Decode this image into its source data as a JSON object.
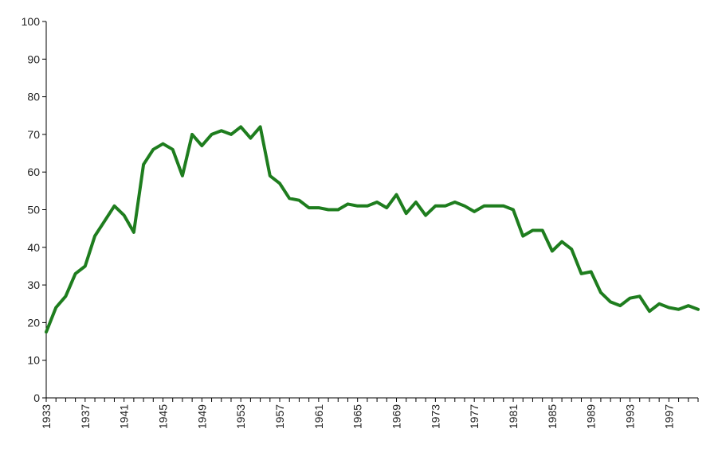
{
  "chart_data": {
    "type": "line",
    "title": "",
    "xlabel": "",
    "ylabel": "",
    "xlim": [
      1933,
      2000
    ],
    "ylim": [
      0,
      100
    ],
    "grid": false,
    "y_ticks": [
      0,
      10,
      20,
      30,
      40,
      50,
      60,
      70,
      80,
      90,
      100
    ],
    "x_tick_labels": [
      1933,
      1937,
      1941,
      1945,
      1949,
      1953,
      1957,
      1961,
      1965,
      1969,
      1973,
      1977,
      1981,
      1985,
      1989,
      1993,
      1997
    ],
    "line_color": "#1e7d1e",
    "series": [
      {
        "x": [
          1933,
          1934,
          1935,
          1936,
          1937,
          1938,
          1939,
          1940,
          1941,
          1942,
          1943,
          1944,
          1945,
          1946,
          1947,
          1948,
          1949,
          1950,
          1951,
          1952,
          1953,
          1954,
          1955,
          1956,
          1957,
          1958,
          1959,
          1960,
          1961,
          1962,
          1963,
          1964,
          1965,
          1966,
          1967,
          1968,
          1969,
          1970,
          1971,
          1972,
          1973,
          1974,
          1975,
          1976,
          1977,
          1978,
          1979,
          1980,
          1981,
          1982,
          1983,
          1984,
          1985,
          1986,
          1987,
          1988,
          1989,
          1990,
          1991,
          1992,
          1993,
          1994,
          1995,
          1996,
          1997,
          1998,
          1999,
          2000
        ],
        "y": [
          17.5,
          24,
          27,
          33,
          35,
          43,
          47,
          51,
          48.5,
          44,
          62,
          66,
          67.5,
          66,
          59,
          70,
          67,
          70,
          71,
          70,
          72,
          69,
          72,
          59,
          57,
          53,
          52.5,
          50.5,
          50.5,
          50,
          50,
          51.5,
          51,
          51,
          52,
          50.5,
          54,
          49,
          52,
          48.5,
          51,
          51,
          52,
          51,
          49.5,
          51,
          51,
          51,
          50,
          43,
          44.5,
          44.5,
          39,
          41.5,
          39.5,
          33,
          33.5,
          28,
          25.5,
          24.5,
          26.5,
          27,
          23,
          25,
          24,
          23.5,
          24.5,
          23.5
        ]
      }
    ]
  }
}
